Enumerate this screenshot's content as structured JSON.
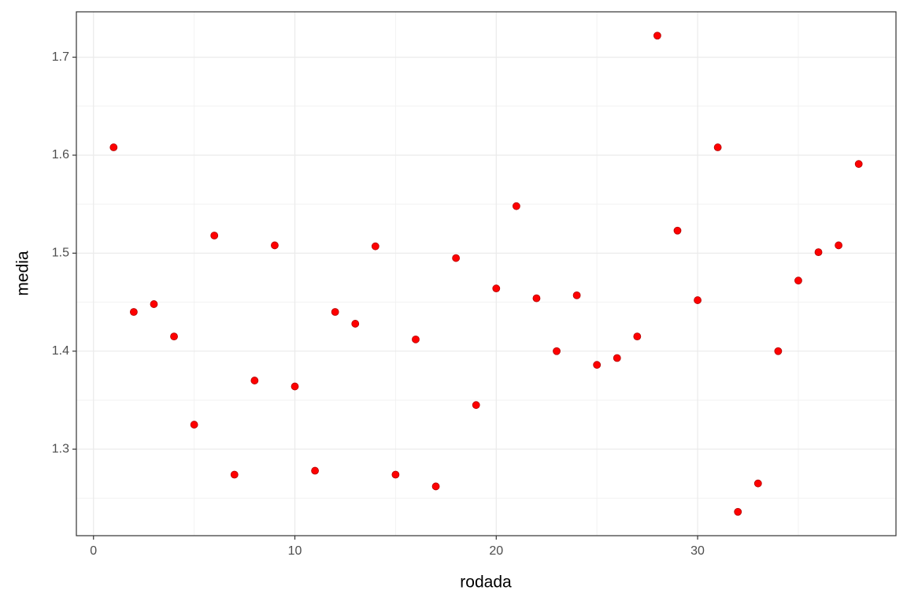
{
  "chart_data": {
    "type": "scatter",
    "x_label": "rodada",
    "y_label": "media",
    "x": [
      1,
      2,
      3,
      4,
      5,
      6,
      7,
      8,
      9,
      10,
      11,
      12,
      13,
      14,
      15,
      16,
      17,
      18,
      19,
      20,
      21,
      22,
      23,
      24,
      25,
      26,
      27,
      28,
      29,
      30,
      31,
      32,
      33,
      34,
      35,
      36,
      37,
      38
    ],
    "values": [
      1.608,
      1.44,
      1.448,
      1.415,
      1.325,
      1.518,
      1.274,
      1.37,
      1.508,
      1.364,
      1.278,
      1.44,
      1.428,
      1.507,
      1.274,
      1.412,
      1.262,
      1.495,
      1.345,
      1.464,
      1.548,
      1.454,
      1.4,
      1.457,
      1.386,
      1.393,
      1.415,
      1.722,
      1.523,
      1.452,
      1.608,
      1.236,
      1.265,
      1.4,
      1.472,
      1.501,
      1.508,
      1.591
    ],
    "color": "#ff0000",
    "xlim": [
      -0.85,
      39.85
    ],
    "xticks": [
      0,
      10,
      20,
      30
    ],
    "ylim": [
      1.2117,
      1.7463
    ],
    "yticks": [
      1.3,
      1.4,
      1.5,
      1.6,
      1.7
    ],
    "grid": true
  }
}
